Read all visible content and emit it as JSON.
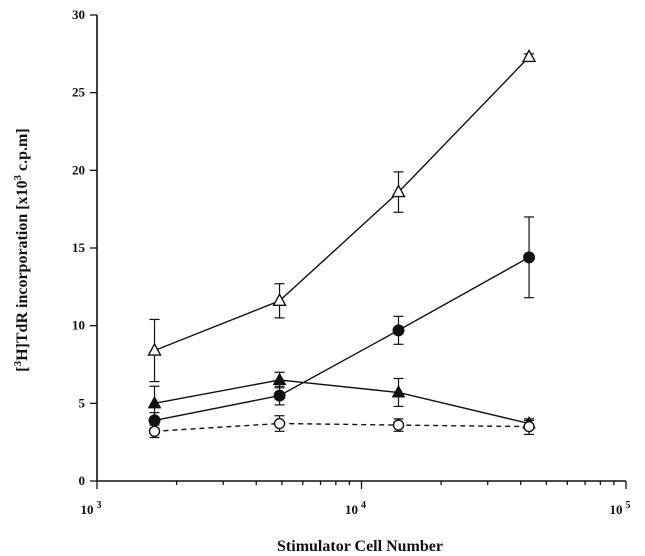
{
  "chart_data": {
    "type": "line",
    "xlabel": "Stimulator Cell Number",
    "ylabel": "[3H]TdR incorporation [x103 c.p.m]",
    "ylabel_parts": {
      "bracket_open": "[",
      "sup1": "3",
      "mid": "H]TdR incorporation [x10",
      "sup2": "3",
      "end": " c.p.m]"
    },
    "x_scale": "log",
    "xlim": [
      1000,
      100000
    ],
    "x_ticks": [
      {
        "value": 1000,
        "base": "10",
        "exp": "3"
      },
      {
        "value": 10000,
        "base": "10",
        "exp": "4"
      },
      {
        "value": 100000,
        "base": "10",
        "exp": "5"
      }
    ],
    "ylim": [
      0,
      30
    ],
    "y_ticks": [
      0,
      5,
      10,
      15,
      20,
      25,
      30
    ],
    "grid": false,
    "x": [
      1650,
      4900,
      13800,
      43000
    ],
    "series": [
      {
        "marker": "open-triangle",
        "line": "solid",
        "values": [
          8.4,
          11.6,
          18.6,
          27.3
        ],
        "errors": [
          2.0,
          1.1,
          1.3,
          0.2
        ]
      },
      {
        "marker": "filled-circle",
        "line": "solid",
        "values": [
          3.9,
          5.5,
          9.7,
          14.4
        ],
        "errors": [
          0.5,
          0.6,
          0.9,
          2.6
        ]
      },
      {
        "marker": "filled-triangle",
        "line": "solid",
        "values": [
          5.0,
          6.5,
          5.7,
          3.7
        ],
        "errors": [
          1.1,
          0.5,
          0.9,
          0.2
        ]
      },
      {
        "marker": "open-circle",
        "line": "dashed",
        "values": [
          3.2,
          3.7,
          3.6,
          3.5
        ],
        "errors": [
          0.4,
          0.5,
          0.4,
          0.5
        ]
      }
    ]
  }
}
